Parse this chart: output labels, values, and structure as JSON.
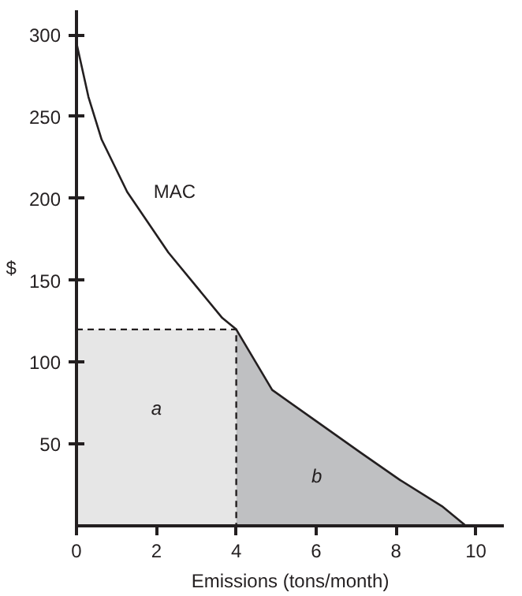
{
  "chart_data": {
    "type": "line",
    "xlabel": "Emissions (tons/month)",
    "ylabel": "$",
    "xlim": [
      0,
      10.7
    ],
    "ylim": [
      0,
      315
    ],
    "xticks": [
      0,
      2,
      4,
      6,
      8,
      10
    ],
    "yticks": [
      50,
      100,
      150,
      200,
      250,
      300
    ],
    "grid": false,
    "series": [
      {
        "type": "area",
        "name": "a",
        "color": "#e6e6e6",
        "line_style": "dashed",
        "x": [
          0,
          4
        ],
        "values": [
          120,
          120
        ]
      },
      {
        "type": "area",
        "name": "b",
        "color": "#bfc0c2",
        "x": [
          4,
          4.9,
          6.0,
          7.1,
          8.1,
          9.15,
          9.75
        ],
        "values": [
          120,
          83,
          64,
          45,
          28,
          12,
          0
        ]
      },
      {
        "name": "MAC",
        "color": "#231f20",
        "x": [
          0,
          0.3,
          0.63,
          1.27,
          2.3,
          3.65,
          4,
          4.9,
          6.0,
          7.1,
          8.1,
          9.15,
          9.75
        ],
        "values": [
          295,
          262,
          236,
          204,
          167,
          127,
          120,
          83,
          64,
          45,
          28,
          12,
          0
        ]
      }
    ]
  }
}
